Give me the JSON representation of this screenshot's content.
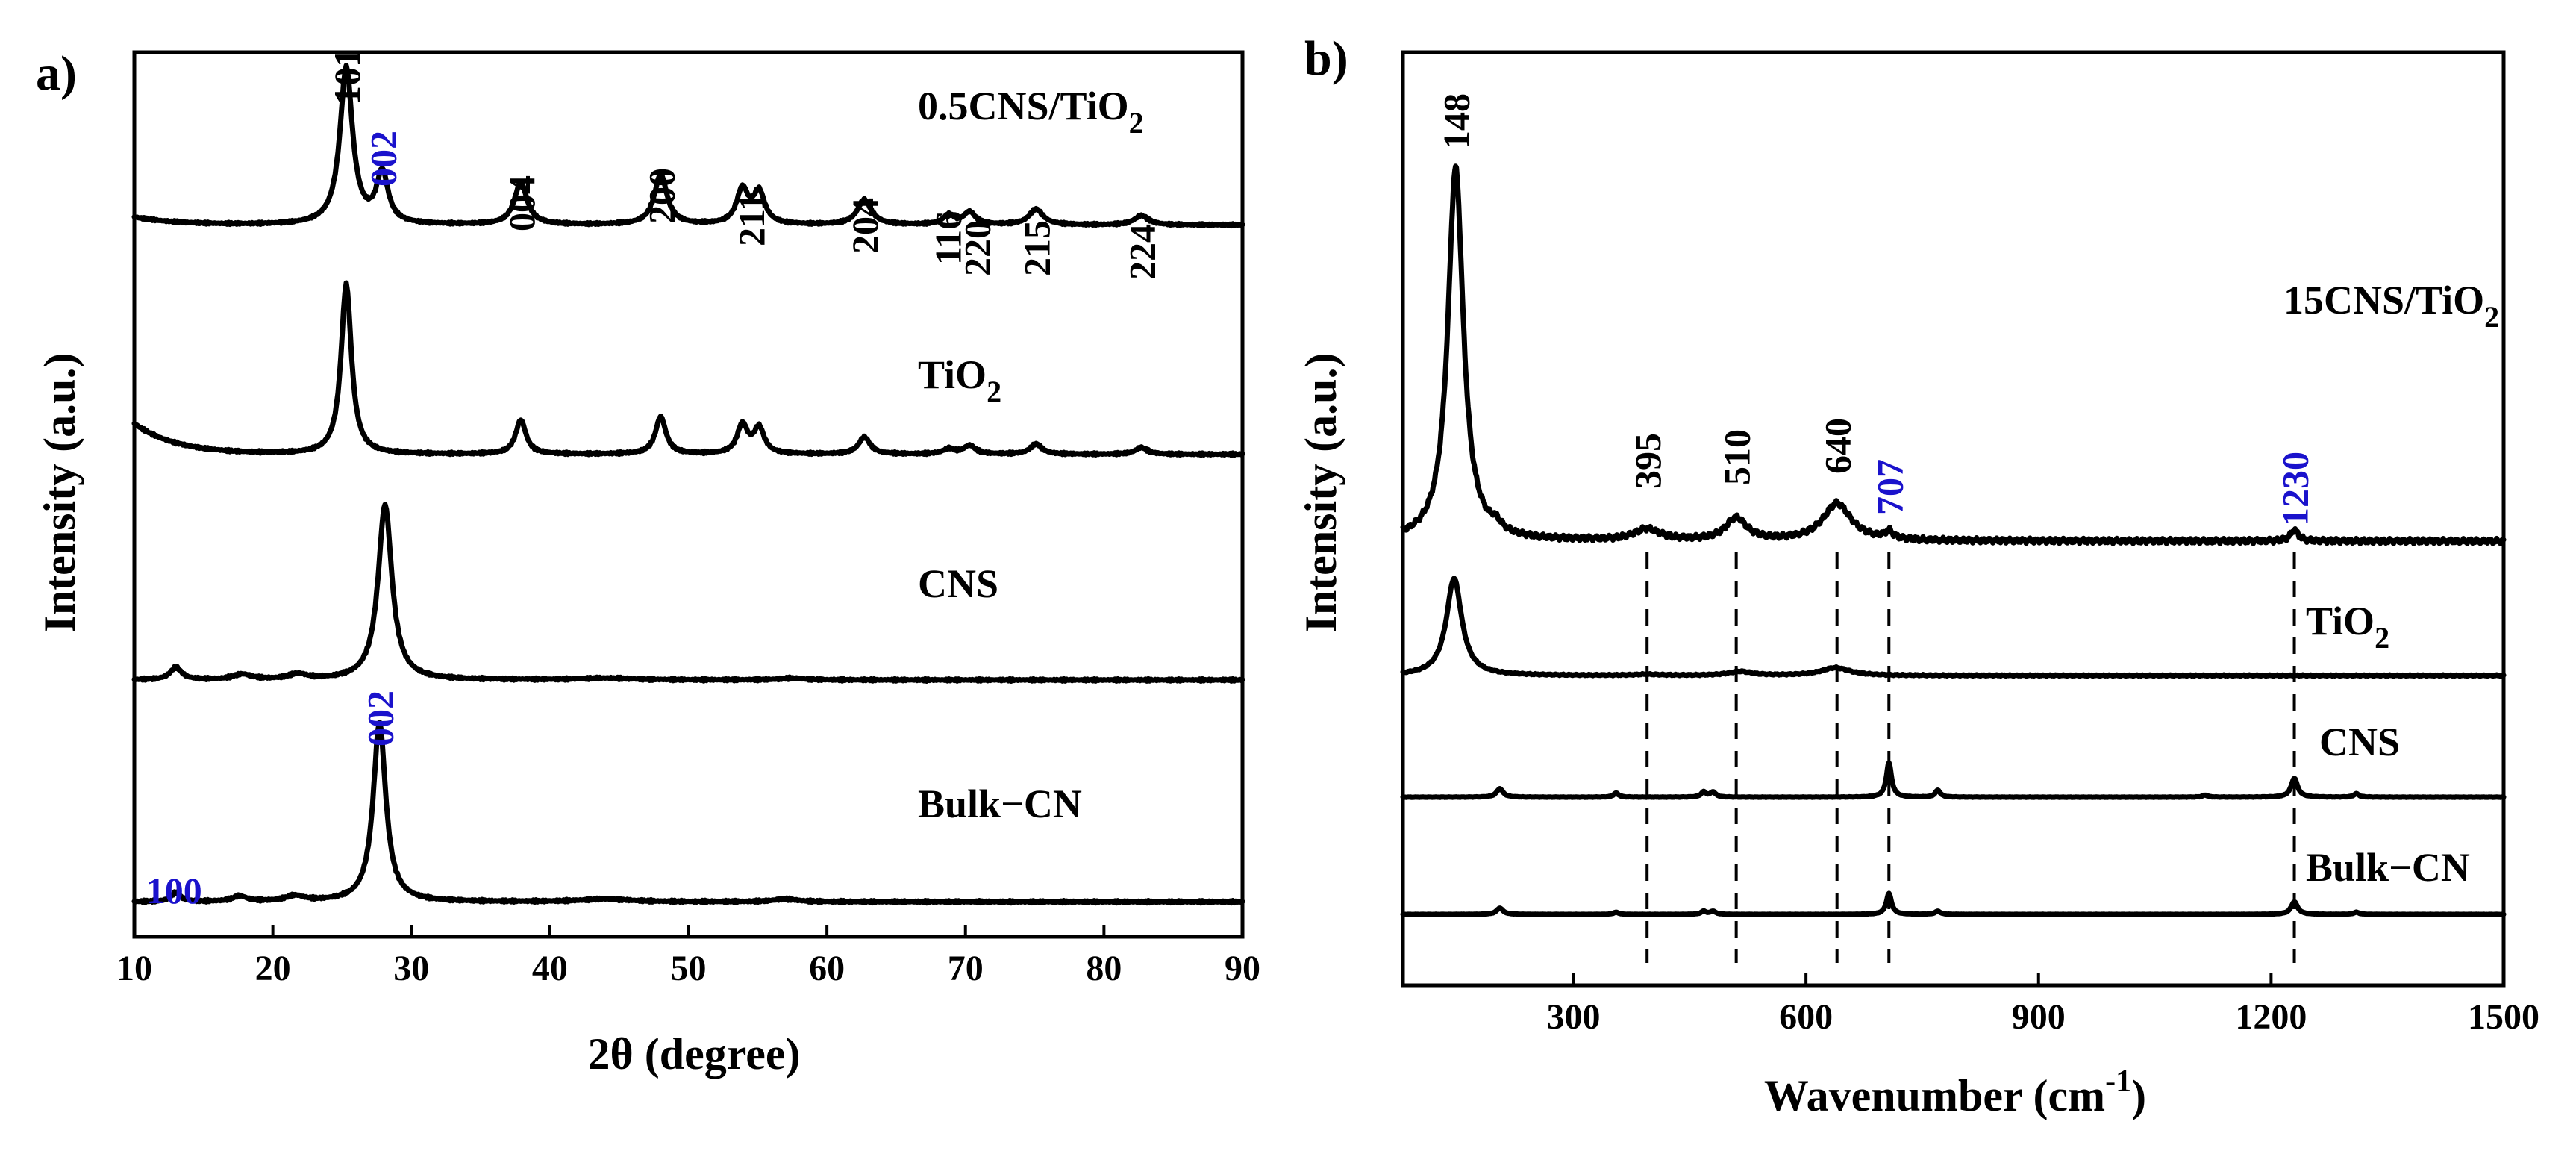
{
  "colors": {
    "ink": "#000000",
    "highlight": "#1a12cc"
  },
  "chart_data": [
    {
      "panel": "a)",
      "type": "line",
      "xlabel": "2θ (degree)",
      "ylabel": "Intensity (a.u.)",
      "xlim": [
        10,
        90
      ],
      "xticks": [
        10,
        20,
        30,
        40,
        50,
        60,
        70,
        80,
        90
      ],
      "series": [
        {
          "name": "0.5CNS/TiO2",
          "label_main": "0.5CNS/TiO",
          "label_sub": "2",
          "baseline": 0.05,
          "start_rise": 0.05,
          "peaks": [
            {
              "pos": 25.3,
              "height": 1.0,
              "width": 0.55
            },
            {
              "pos": 27.9,
              "height": 0.32,
              "width": 0.5
            },
            {
              "pos": 37.9,
              "height": 0.27,
              "width": 0.55
            },
            {
              "pos": 48.0,
              "height": 0.32,
              "width": 0.55
            },
            {
              "pos": 53.9,
              "height": 0.22,
              "width": 0.5
            },
            {
              "pos": 55.1,
              "height": 0.2,
              "width": 0.5
            },
            {
              "pos": 62.7,
              "height": 0.16,
              "width": 0.6
            },
            {
              "pos": 68.8,
              "height": 0.06,
              "width": 0.5
            },
            {
              "pos": 70.3,
              "height": 0.08,
              "width": 0.5
            },
            {
              "pos": 75.1,
              "height": 0.1,
              "width": 0.6
            },
            {
              "pos": 82.7,
              "height": 0.06,
              "width": 0.6
            }
          ]
        },
        {
          "name": "TiO2",
          "label_main": "TiO",
          "label_sub": "2",
          "baseline": 0.05,
          "start_rise": 0.18,
          "peaks": [
            {
              "pos": 25.3,
              "height": 1.0,
              "width": 0.45
            },
            {
              "pos": 37.9,
              "height": 0.2,
              "width": 0.45
            },
            {
              "pos": 48.0,
              "height": 0.22,
              "width": 0.45
            },
            {
              "pos": 53.9,
              "height": 0.17,
              "width": 0.45
            },
            {
              "pos": 55.1,
              "height": 0.15,
              "width": 0.45
            },
            {
              "pos": 62.7,
              "height": 0.1,
              "width": 0.5
            },
            {
              "pos": 68.8,
              "height": 0.03,
              "width": 0.5
            },
            {
              "pos": 70.3,
              "height": 0.05,
              "width": 0.5
            },
            {
              "pos": 75.1,
              "height": 0.06,
              "width": 0.5
            },
            {
              "pos": 82.7,
              "height": 0.04,
              "width": 0.5
            }
          ]
        },
        {
          "name": "CNS",
          "label_main": "CNS",
          "label_sub": "",
          "baseline": 0.03,
          "start_rise": 0.0,
          "peaks": [
            {
              "pos": 13.0,
              "height": 0.07,
              "width": 0.5
            },
            {
              "pos": 17.8,
              "height": 0.03,
              "width": 0.8
            },
            {
              "pos": 21.8,
              "height": 0.03,
              "width": 0.8
            },
            {
              "pos": 28.1,
              "height": 1.0,
              "width": 0.6
            },
            {
              "pos": 44.0,
              "height": 0.01,
              "width": 2.0
            },
            {
              "pos": 57.5,
              "height": 0.01,
              "width": 1.0
            }
          ]
        },
        {
          "name": "Bulk-CN",
          "label_main": "Bulk−CN",
          "label_sub": "",
          "baseline": 0.02,
          "start_rise": 0.0,
          "peaks": [
            {
              "pos": 13.0,
              "height": 0.05,
              "width": 0.4
            },
            {
              "pos": 17.6,
              "height": 0.03,
              "width": 0.6
            },
            {
              "pos": 21.6,
              "height": 0.03,
              "width": 0.8
            },
            {
              "pos": 27.7,
              "height": 1.0,
              "width": 0.55
            },
            {
              "pos": 44.0,
              "height": 0.015,
              "width": 2.0
            },
            {
              "pos": 57.0,
              "height": 0.015,
              "width": 1.0
            }
          ]
        }
      ],
      "annotations": [
        {
          "text": "101",
          "x": 25.3,
          "color": "ink"
        },
        {
          "text": "002",
          "x": 27.9,
          "color": "highlight"
        },
        {
          "text": "004",
          "x": 37.9,
          "color": "ink"
        },
        {
          "text": "200",
          "x": 48.0,
          "color": "ink"
        },
        {
          "text": "211",
          "x": 54.5,
          "color": "ink"
        },
        {
          "text": "204",
          "x": 62.7,
          "color": "ink"
        },
        {
          "text": "116",
          "x": 68.7,
          "color": "ink"
        },
        {
          "text": "220",
          "x": 70.8,
          "color": "ink"
        },
        {
          "text": "215",
          "x": 75.1,
          "color": "ink"
        },
        {
          "text": "224",
          "x": 82.7,
          "color": "ink"
        },
        {
          "text": "002",
          "x": 27.7,
          "color": "highlight",
          "series": "Bulk-CN"
        },
        {
          "text": "100",
          "x": 13.0,
          "color": "highlight",
          "series": "Bulk-CN"
        }
      ]
    },
    {
      "panel": "b)",
      "type": "line",
      "xlabel_main": "Wavenumber (cm",
      "xlabel_sup": "-1",
      "xlabel_close": ")",
      "ylabel": "Intensity (a.u.)",
      "xlim": [
        80,
        1500
      ],
      "xticks": [
        300,
        600,
        900,
        1200,
        1500
      ],
      "series": [
        {
          "name": "15CNS/TiO2",
          "label_main": "15CNS/TiO",
          "label_sub": "2",
          "baseline": 0.02,
          "peaks": [
            {
              "pos": 148,
              "height": 1.0,
              "width": 12
            },
            {
              "pos": 200,
              "height": 0.02,
              "width": 8
            },
            {
              "pos": 395,
              "height": 0.03,
              "width": 20
            },
            {
              "pos": 510,
              "height": 0.06,
              "width": 16
            },
            {
              "pos": 640,
              "height": 0.1,
              "width": 22
            },
            {
              "pos": 707,
              "height": 0.02,
              "width": 6
            },
            {
              "pos": 1230,
              "height": 0.03,
              "width": 6
            }
          ]
        },
        {
          "name": "TiO2",
          "label_main": "TiO",
          "label_sub": "2",
          "baseline": 0.0,
          "peaks": [
            {
              "pos": 146,
              "height": 1.0,
              "width": 12
            },
            {
              "pos": 395,
              "height": 0.01,
              "width": 20
            },
            {
              "pos": 515,
              "height": 0.04,
              "width": 18
            },
            {
              "pos": 638,
              "height": 0.08,
              "width": 22
            }
          ]
        },
        {
          "name": "CNS",
          "label_main": "CNS",
          "label_sub": "",
          "baseline": 0.0,
          "peaks": [
            {
              "pos": 205,
              "height": 0.25,
              "width": 5
            },
            {
              "pos": 355,
              "height": 0.12,
              "width": 4
            },
            {
              "pos": 468,
              "height": 0.15,
              "width": 4
            },
            {
              "pos": 480,
              "height": 0.15,
              "width": 4
            },
            {
              "pos": 707,
              "height": 1.0,
              "width": 4
            },
            {
              "pos": 770,
              "height": 0.2,
              "width": 4
            },
            {
              "pos": 1115,
              "height": 0.06,
              "width": 4
            },
            {
              "pos": 1230,
              "height": 0.55,
              "width": 5
            },
            {
              "pos": 1310,
              "height": 0.1,
              "width": 4
            }
          ]
        },
        {
          "name": "Bulk-CN",
          "label_main": "Bulk−CN",
          "label_sub": "",
          "baseline": 0.0,
          "peaks": [
            {
              "pos": 205,
              "height": 0.3,
              "width": 5
            },
            {
              "pos": 355,
              "height": 0.1,
              "width": 4
            },
            {
              "pos": 468,
              "height": 0.15,
              "width": 4
            },
            {
              "pos": 480,
              "height": 0.15,
              "width": 4
            },
            {
              "pos": 707,
              "height": 1.0,
              "width": 4
            },
            {
              "pos": 770,
              "height": 0.15,
              "width": 4
            },
            {
              "pos": 1230,
              "height": 0.6,
              "width": 5
            },
            {
              "pos": 1310,
              "height": 0.1,
              "width": 4
            }
          ]
        }
      ],
      "annotations": [
        {
          "text": "148",
          "x": 148,
          "color": "ink"
        },
        {
          "text": "395",
          "x": 395,
          "color": "ink"
        },
        {
          "text": "510",
          "x": 510,
          "color": "ink"
        },
        {
          "text": "640",
          "x": 640,
          "color": "ink"
        },
        {
          "text": "707",
          "x": 707,
          "color": "highlight"
        },
        {
          "text": "1230",
          "x": 1230,
          "color": "highlight"
        }
      ],
      "reference_lines": [
        395,
        510,
        640,
        707,
        1230
      ]
    }
  ]
}
